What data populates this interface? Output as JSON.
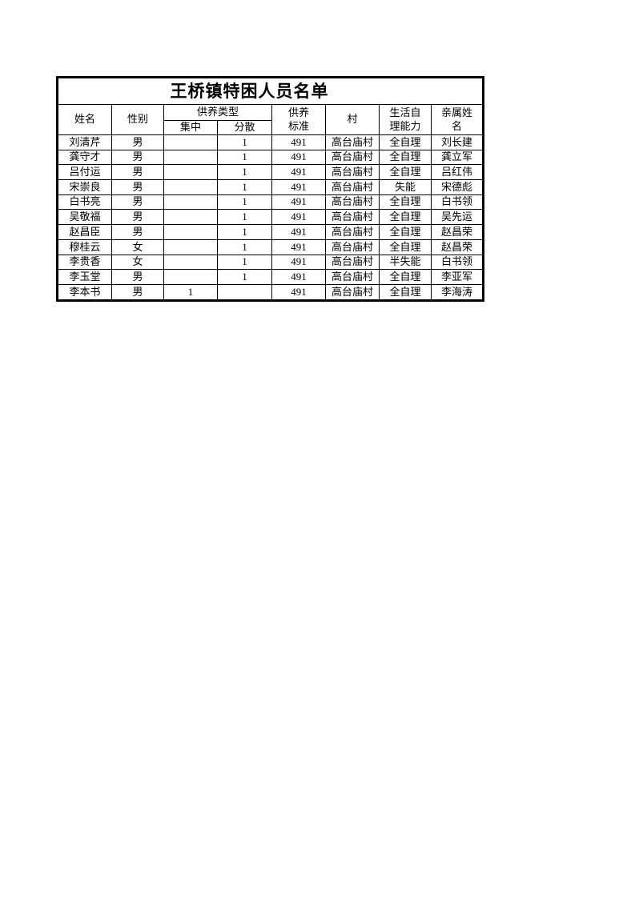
{
  "page": {
    "background_color": "#ffffff",
    "text_color": "#000000",
    "border_color": "#000000"
  },
  "table": {
    "title": "王桥镇特困人员名单",
    "headers": {
      "name": "姓名",
      "gender": "性别",
      "support_type_group": "供养类型",
      "centralized": "集中",
      "decentralized": "分散",
      "support_standard": "供养\n标准",
      "village": "村",
      "self_care": "生活自\n理能力",
      "relative_name": "亲属姓\n名"
    },
    "field_order": [
      "name",
      "gender",
      "centralized",
      "decentralized",
      "standard",
      "village",
      "self_care",
      "relative"
    ],
    "rows": [
      {
        "name": "刘清芹",
        "gender": "男",
        "centralized": "",
        "decentralized": "1",
        "standard": "491",
        "village": "高台庙村",
        "self_care": "全自理",
        "relative": "刘长建"
      },
      {
        "name": "龚守才",
        "gender": "男",
        "centralized": "",
        "decentralized": "1",
        "standard": "491",
        "village": "高台庙村",
        "self_care": "全自理",
        "relative": "龚立军"
      },
      {
        "name": "吕付运",
        "gender": "男",
        "centralized": "",
        "decentralized": "1",
        "standard": "491",
        "village": "高台庙村",
        "self_care": "全自理",
        "relative": "吕红伟"
      },
      {
        "name": "宋崇良",
        "gender": "男",
        "centralized": "",
        "decentralized": "1",
        "standard": "491",
        "village": "高台庙村",
        "self_care": "失能",
        "relative": "宋德彪"
      },
      {
        "name": "白书亮",
        "gender": "男",
        "centralized": "",
        "decentralized": "1",
        "standard": "491",
        "village": "高台庙村",
        "self_care": "全自理",
        "relative": "白书领"
      },
      {
        "name": "吴敬福",
        "gender": "男",
        "centralized": "",
        "decentralized": "1",
        "standard": "491",
        "village": "高台庙村",
        "self_care": "全自理",
        "relative": "吴先运"
      },
      {
        "name": "赵昌臣",
        "gender": "男",
        "centralized": "",
        "decentralized": "1",
        "standard": "491",
        "village": "高台庙村",
        "self_care": "全自理",
        "relative": "赵昌荣"
      },
      {
        "name": "穆桂云",
        "gender": "女",
        "centralized": "",
        "decentralized": "1",
        "standard": "491",
        "village": "高台庙村",
        "self_care": "全自理",
        "relative": "赵昌荣"
      },
      {
        "name": "李贵香",
        "gender": "女",
        "centralized": "",
        "decentralized": "1",
        "standard": "491",
        "village": "高台庙村",
        "self_care": "半失能",
        "relative": "白书领"
      },
      {
        "name": "李玉堂",
        "gender": "男",
        "centralized": "",
        "decentralized": "1",
        "standard": "491",
        "village": "高台庙村",
        "self_care": "全自理",
        "relative": "李亚军"
      },
      {
        "name": "李本书",
        "gender": "男",
        "centralized": "1",
        "decentralized": "",
        "standard": "491",
        "village": "高台庙村",
        "self_care": "全自理",
        "relative": "李海涛"
      }
    ]
  }
}
